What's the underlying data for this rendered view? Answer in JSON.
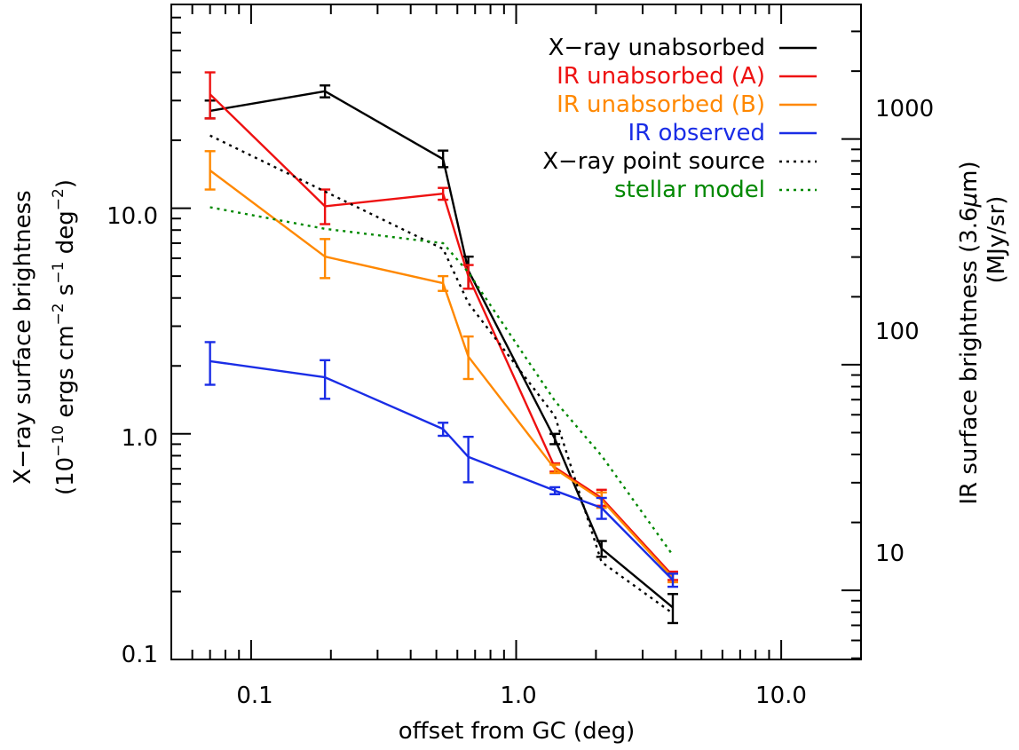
{
  "chart_data": {
    "type": "line",
    "xlabel": "offset from GC (deg)",
    "x_scale": "log",
    "xlim": [
      0.05,
      20
    ],
    "x_ticks": [
      "0.1",
      "1.0",
      "10.0"
    ],
    "ylabel_left": [
      "X−ray surface brightness",
      "(10",
      "−10",
      " ergs cm",
      "−2",
      " s",
      "−1",
      " deg",
      "−2",
      ")"
    ],
    "y_scale": "log",
    "ylim": [
      0.1,
      80
    ],
    "y_ticks": [
      "0.1",
      "1.0",
      "10.0"
    ],
    "ylabel_right": [
      "IR surface brightness (3.6",
      "μ",
      "m)",
      "(MJy/sr)"
    ],
    "y2_scale": "log",
    "y2lim": [
      4.94,
      3950
    ],
    "y2_ticks": [
      "10",
      "100",
      "1000"
    ],
    "legend_position": "top-right",
    "colors": {
      "black": "#000000",
      "red": "#ee1111",
      "orange": "#ff8800",
      "blue": "#1a2de6",
      "green": "#008800"
    },
    "series": [
      {
        "name": "X−ray unabsorbed",
        "color": "#000000",
        "dash": "solid",
        "x": [
          0.07,
          0.19,
          0.53,
          0.66,
          1.4,
          2.1,
          3.9
        ],
        "y": [
          27,
          33,
          16.5,
          5.3,
          0.95,
          0.31,
          0.17
        ],
        "err": [
          [
            25,
            30
          ],
          [
            31,
            35
          ],
          [
            15.2,
            18
          ],
          [
            4.4,
            6.1
          ],
          [
            0.9,
            1.0
          ],
          [
            0.285,
            0.335
          ],
          [
            0.145,
            0.195
          ]
        ]
      },
      {
        "name": "IR unabsorbed (A)",
        "color": "#ee1111",
        "dash": "solid",
        "x": [
          0.07,
          0.19,
          0.53,
          0.66,
          1.4,
          2.1,
          3.9
        ],
        "y": [
          32,
          10.2,
          11.6,
          5.0,
          0.71,
          0.52,
          0.235
        ],
        "err": [
          [
            25,
            40
          ],
          [
            8.5,
            12.1
          ],
          [
            10.9,
            12.3
          ],
          [
            4.4,
            5.6
          ],
          [
            0.68,
            0.74
          ],
          [
            0.48,
            0.565
          ],
          [
            0.225,
            0.245
          ]
        ]
      },
      {
        "name": "IR unabsorbed (B)",
        "color": "#ff8800",
        "dash": "solid",
        "x": [
          0.07,
          0.19,
          0.53,
          0.66,
          1.4,
          2.1,
          3.9
        ],
        "y": [
          14.7,
          6.1,
          4.65,
          2.2,
          0.7,
          0.51,
          0.23
        ],
        "err": [
          [
            12.1,
            17.9
          ],
          [
            4.9,
            7.3
          ],
          [
            4.3,
            5.0
          ],
          [
            1.75,
            2.7
          ],
          [
            0.67,
            0.73
          ],
          [
            0.47,
            0.55
          ],
          [
            0.22,
            0.24
          ]
        ]
      },
      {
        "name": "IR observed",
        "color": "#1a2de6",
        "dash": "solid",
        "x": [
          0.07,
          0.19,
          0.53,
          0.66,
          1.4,
          2.1,
          3.9
        ],
        "y": [
          2.1,
          1.78,
          1.05,
          0.79,
          0.56,
          0.47,
          0.225
        ],
        "err": [
          [
            1.65,
            2.55
          ],
          [
            1.43,
            2.12
          ],
          [
            0.98,
            1.12
          ],
          [
            0.61,
            0.97
          ],
          [
            0.54,
            0.58
          ],
          [
            0.42,
            0.52
          ],
          [
            0.21,
            0.24
          ]
        ]
      },
      {
        "name": "X−ray point source",
        "color": "#000000",
        "dash": "dotted",
        "x": [
          0.07,
          0.53,
          0.66,
          1.4,
          2.1,
          3.9
        ],
        "y": [
          21,
          6.6,
          3.8,
          1.2,
          0.27,
          0.16
        ]
      },
      {
        "name": "stellar model",
        "color": "#008800",
        "dash": "dotted",
        "x": [
          0.07,
          0.19,
          0.53,
          0.66,
          1.4,
          2.1,
          3.9
        ],
        "y": [
          10.1,
          8.1,
          7.0,
          5.2,
          1.4,
          0.8,
          0.29
        ]
      }
    ]
  }
}
